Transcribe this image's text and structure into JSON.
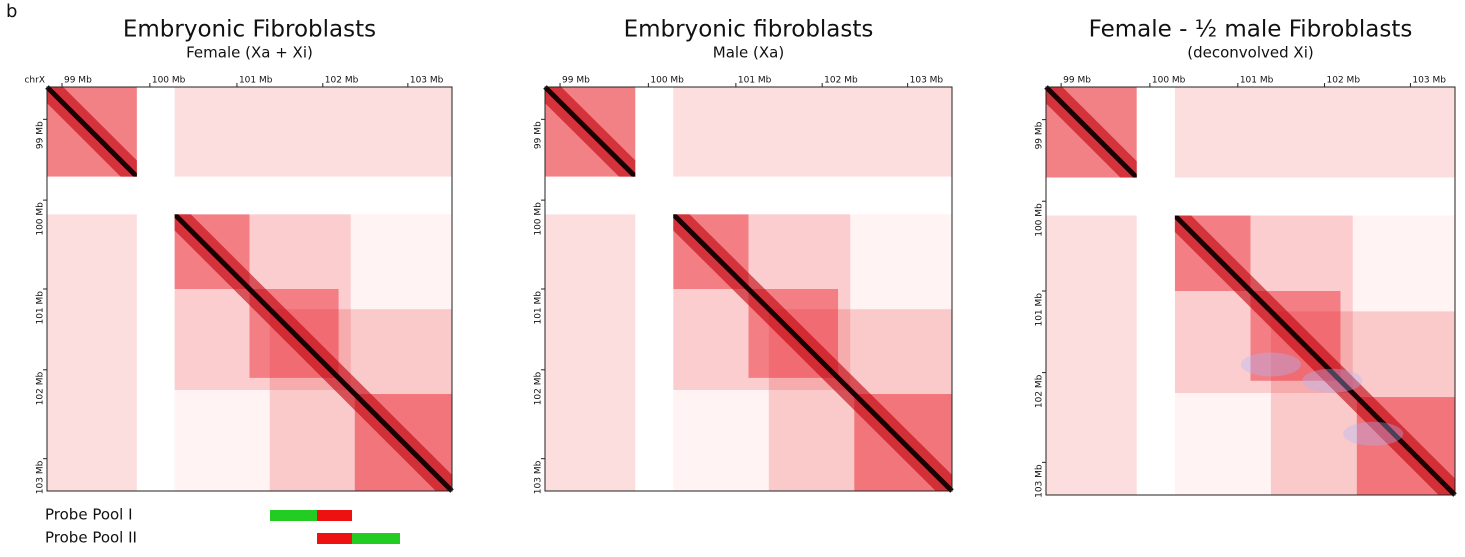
{
  "panel_label": "b",
  "panels": [
    {
      "title": "Embryonic Fibroblasts",
      "subtitle": "Female (Xa + Xi)",
      "chrom": "chrX",
      "xticks": [
        "99 Mb",
        "100 Mb",
        "101 Mb",
        "102 Mb",
        "103 Mb"
      ],
      "yticks": [
        "99 Mb",
        "100 Mb",
        "101 Mb",
        "102 Mb",
        "103 Mb"
      ]
    },
    {
      "title": "Embryonic fibroblasts",
      "subtitle": "Male (Xa)",
      "xticks": [
        "99 Mb",
        "100 Mb",
        "101 Mb",
        "102 Mb",
        "103 Mb"
      ],
      "yticks": [
        "99 Mb",
        "100 Mb",
        "101 Mb",
        "102 Mb",
        "103 Mb"
      ]
    },
    {
      "title": "Female - ½ male Fibroblasts",
      "subtitle": "(deconvolved Xi)",
      "xticks": [
        "99 Mb",
        "100 Mb",
        "101 Mb",
        "102 Mb",
        "103 Mb"
      ],
      "yticks": [
        "99 Mb",
        "100 Mb",
        "101 Mb",
        "102 Mb",
        "103 Mb"
      ]
    }
  ],
  "probes": [
    {
      "name": "Probe Pool I"
    },
    {
      "name": "Probe Pool II"
    }
  ]
}
